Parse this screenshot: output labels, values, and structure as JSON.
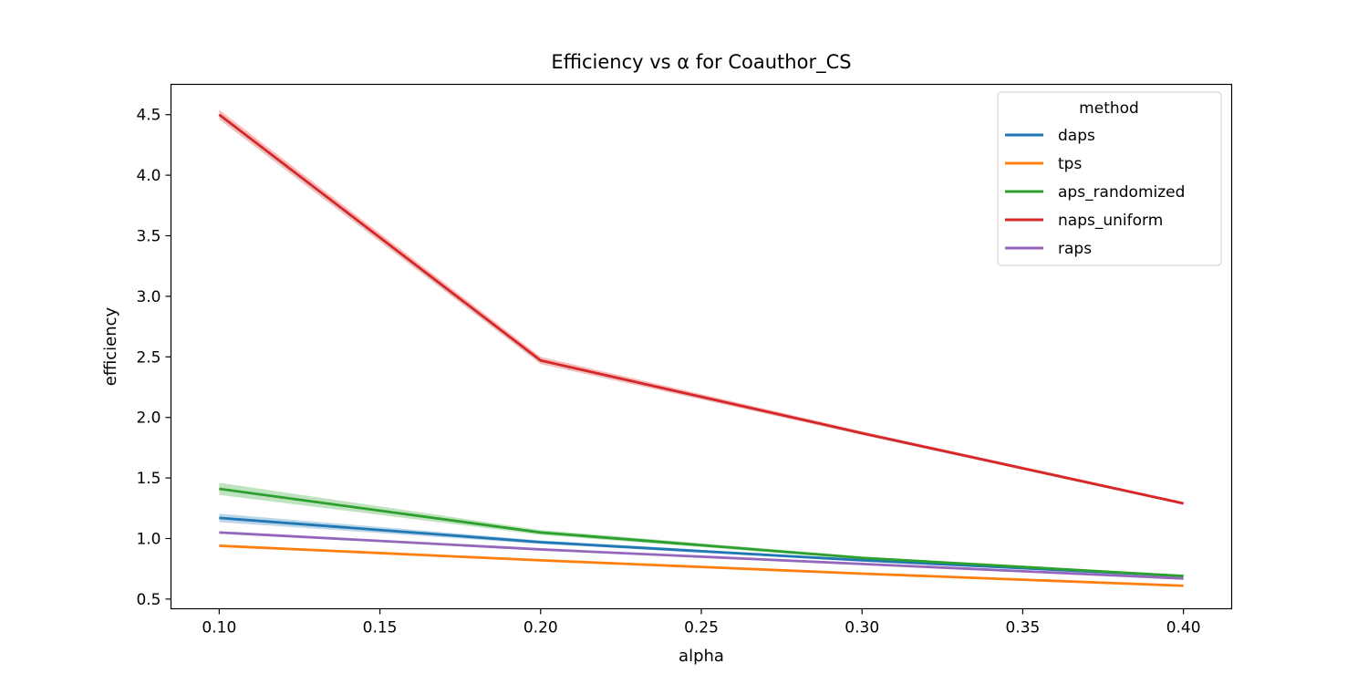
{
  "chart_data": {
    "type": "line",
    "title": "Efficiency vs α for Coauthor_CS",
    "xlabel": "alpha",
    "ylabel": "efficiency",
    "xlim": [
      0.085,
      0.415
    ],
    "ylim": [
      0.42,
      4.75
    ],
    "xticks": [
      0.1,
      0.15,
      0.2,
      0.25,
      0.3,
      0.35,
      0.4
    ],
    "xtick_labels": [
      "0.10",
      "0.15",
      "0.20",
      "0.25",
      "0.30",
      "0.35",
      "0.40"
    ],
    "yticks": [
      0.5,
      1.0,
      1.5,
      2.0,
      2.5,
      3.0,
      3.5,
      4.0,
      4.5
    ],
    "ytick_labels": [
      "0.5",
      "1.0",
      "1.5",
      "2.0",
      "2.5",
      "3.0",
      "3.5",
      "4.0",
      "4.5"
    ],
    "grid": false,
    "legend": {
      "title": "method",
      "placement": "top-right"
    },
    "x": [
      0.1,
      0.2,
      0.3,
      0.4
    ],
    "series": [
      {
        "name": "daps",
        "color": "#1f77b4",
        "values": [
          1.17,
          0.97,
          0.82,
          0.69
        ],
        "band": [
          0.035,
          0.015,
          0.01,
          0.008
        ]
      },
      {
        "name": "tps",
        "color": "#ff7f0e",
        "values": [
          0.94,
          0.82,
          0.71,
          0.61
        ],
        "band": [
          0.008,
          0.006,
          0.005,
          0.005
        ]
      },
      {
        "name": "aps_randomized",
        "color": "#2ca02c",
        "values": [
          1.41,
          1.05,
          0.84,
          0.69
        ],
        "band": [
          0.05,
          0.02,
          0.012,
          0.01
        ]
      },
      {
        "name": "naps_uniform",
        "color": "#d62728",
        "values": [
          4.5,
          2.47,
          1.87,
          1.29
        ],
        "band": [
          0.04,
          0.03,
          0.015,
          0.012
        ]
      },
      {
        "name": "raps",
        "color": "#9467bd",
        "values": [
          1.05,
          0.91,
          0.79,
          0.67
        ],
        "band": [
          0.01,
          0.008,
          0.006,
          0.006
        ]
      }
    ]
  }
}
